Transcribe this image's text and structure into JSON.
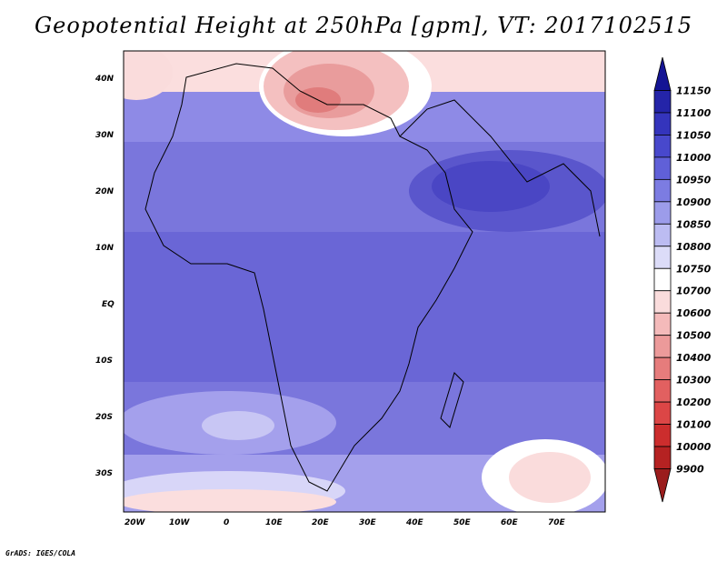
{
  "title": "Geopotential Height at 250hPa [gpm], VT: 2017102515",
  "credit": "GrADS: IGES/COLA",
  "map": {
    "lon_labels": [
      "20W",
      "10W",
      "0",
      "10E",
      "20E",
      "30E",
      "40E",
      "50E",
      "60E",
      "70E"
    ],
    "lat_labels": [
      "40N",
      "30N",
      "20N",
      "10N",
      "EQ",
      "10S",
      "20S",
      "30S"
    ],
    "lon_range": [
      -22,
      80
    ],
    "lat_range": [
      -37,
      45
    ]
  },
  "colorbar": {
    "levels": [
      "9900",
      "10000",
      "10100",
      "10200",
      "10300",
      "10400",
      "10500",
      "10600",
      "10700",
      "10750",
      "10800",
      "10850",
      "10900",
      "10950",
      "11000",
      "11050",
      "11100",
      "11150"
    ],
    "colors": [
      "#9b1c1c",
      "#b52222",
      "#cc2d2d",
      "#dc4646",
      "#e26060",
      "#e67c7c",
      "#ec9a9a",
      "#f4baba",
      "#fadcdc",
      "#ffffff",
      "#dcdcf8",
      "#bcbcf2",
      "#9c9cea",
      "#7c7ce2",
      "#6060d8",
      "#4848cc",
      "#3434bc",
      "#2424a8",
      "#141494"
    ]
  },
  "regions": {
    "mediterranean_high": "#f0a0a0",
    "arabian_high": "#4a46c6",
    "tropical_band": "#6a66d6",
    "subtropical_band": "#8a86e4",
    "southern_ridge": "#f8d8d8",
    "coastline": "#000000"
  }
}
